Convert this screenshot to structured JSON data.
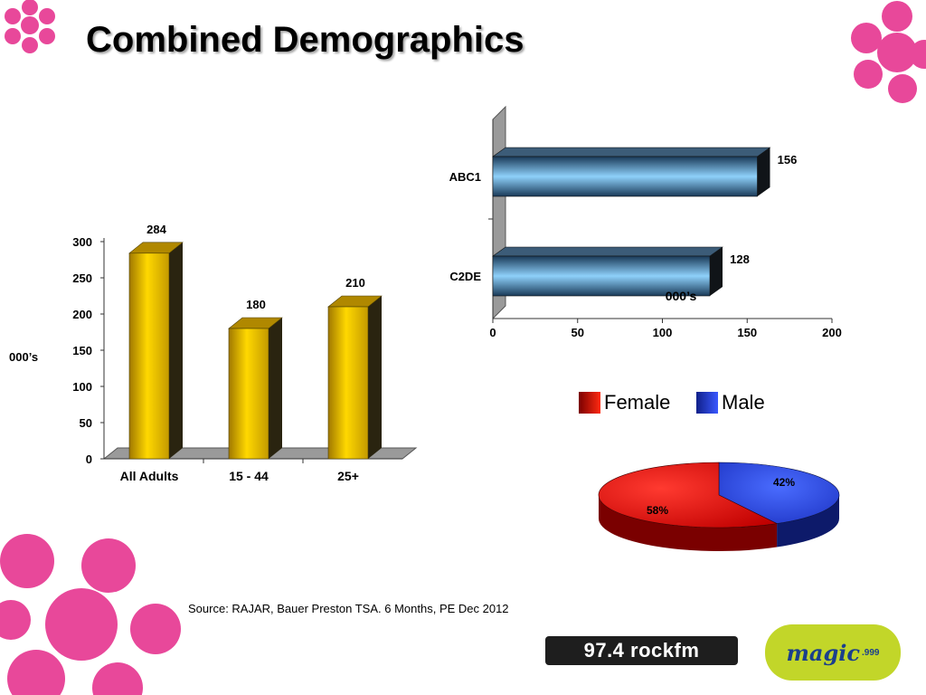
{
  "title": "Combined Demographics",
  "source": "Source: RAJAR, Bauer Preston TSA. 6 Months, PE Dec 2012",
  "colors": {
    "bar_gold": "#f5c400",
    "bar_blue": "#7ec3f0",
    "female": "#e01010",
    "male": "#2040d0",
    "flower": "#e8489a"
  },
  "chart_data": [
    {
      "type": "bar",
      "categories": [
        "All Adults",
        "15 - 44",
        "25+"
      ],
      "values": [
        284,
        180,
        210
      ],
      "ylabel": "000’s",
      "yticks": [
        "0",
        "50",
        "100",
        "150",
        "200",
        "250",
        "300"
      ],
      "ylim": [
        0,
        300
      ]
    },
    {
      "type": "bar",
      "orientation": "horizontal",
      "categories": [
        "ABC1",
        "C2DE"
      ],
      "values": [
        156,
        128
      ],
      "xlabel": "000’s",
      "xticks": [
        "0",
        "50",
        "100",
        "150",
        "200"
      ],
      "xlim": [
        0,
        200
      ]
    },
    {
      "type": "pie",
      "labels": [
        "Female",
        "Male"
      ],
      "values": [
        58,
        42
      ],
      "value_labels": [
        "58%",
        "42%"
      ]
    }
  ],
  "logos": {
    "rock": "97.4 rockfm",
    "magic": "magic",
    "magic_freq": ".999"
  }
}
